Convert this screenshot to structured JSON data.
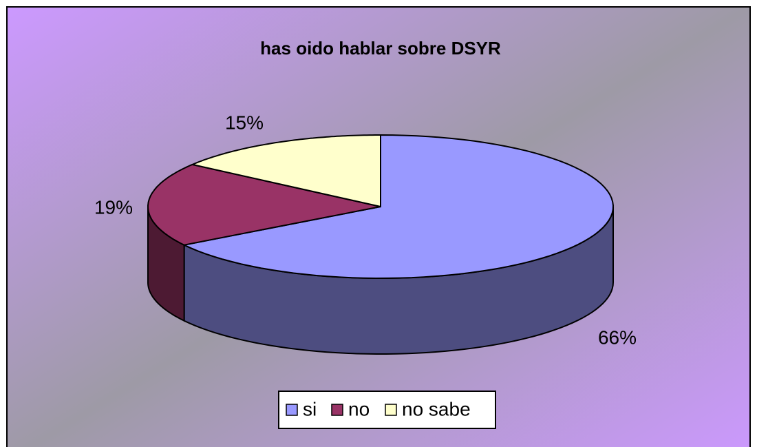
{
  "chart_data": {
    "type": "pie3d",
    "title": "has oido hablar sobre DSYR",
    "categories": [
      "si",
      "no",
      "no sabe"
    ],
    "values": [
      66,
      19,
      15
    ],
    "value_labels": [
      "66%",
      "19%",
      "15%"
    ],
    "colors": [
      "#9999ff",
      "#993366",
      "#ffffcc"
    ],
    "legend": "bottom"
  }
}
